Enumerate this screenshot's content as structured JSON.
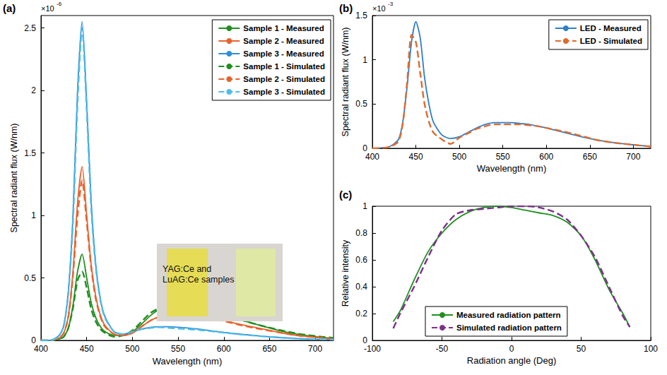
{
  "chart_data": [
    {
      "panel": "(a)",
      "type": "line",
      "xlabel": "Wavelength (nm)",
      "ylabel": "Spectral radiant flux (W/nm)",
      "y_multiplier": {
        "base": "×10",
        "exponent": -6
      },
      "annotations": [
        "YAG:Ce and LuAG:Ce samples"
      ],
      "x": [
        400,
        410,
        420,
        425,
        430,
        435,
        440,
        445,
        450,
        455,
        460,
        465,
        470,
        480,
        490,
        500,
        510,
        520,
        530,
        540,
        550,
        560,
        570,
        580,
        590,
        600,
        620,
        640,
        660,
        680,
        700,
        720
      ],
      "series": [
        {
          "name": "Sample 1 - Measured",
          "color": "#1f8f1f",
          "line_style": "solid",
          "values": [
            0,
            0,
            0.01,
            0.03,
            0.1,
            0.28,
            0.55,
            0.69,
            0.5,
            0.3,
            0.18,
            0.11,
            0.07,
            0.04,
            0.04,
            0.07,
            0.13,
            0.2,
            0.25,
            0.27,
            0.27,
            0.265,
            0.255,
            0.24,
            0.22,
            0.2,
            0.16,
            0.12,
            0.08,
            0.05,
            0.03,
            0.015
          ]
        },
        {
          "name": "Sample 2 - Measured",
          "color": "#e8622c",
          "line_style": "solid",
          "values": [
            0,
            0,
            0.02,
            0.06,
            0.2,
            0.55,
            1.1,
            1.39,
            1.0,
            0.6,
            0.35,
            0.2,
            0.12,
            0.05,
            0.04,
            0.06,
            0.11,
            0.16,
            0.19,
            0.21,
            0.21,
            0.205,
            0.2,
            0.19,
            0.175,
            0.16,
            0.125,
            0.095,
            0.065,
            0.04,
            0.025,
            0.012
          ]
        },
        {
          "name": "Sample 3 - Measured",
          "color": "#2f8fd8",
          "line_style": "solid",
          "values": [
            0,
            0,
            0.04,
            0.12,
            0.4,
            1.0,
            2.0,
            2.55,
            1.9,
            1.1,
            0.6,
            0.33,
            0.19,
            0.07,
            0.05,
            0.07,
            0.09,
            0.105,
            0.11,
            0.11,
            0.105,
            0.1,
            0.092,
            0.083,
            0.073,
            0.064,
            0.048,
            0.035,
            0.024,
            0.015,
            0.009,
            0.005
          ]
        },
        {
          "name": "Sample 1 - Simulated",
          "color": "#1f8f1f",
          "line_style": "dashed",
          "values": [
            0,
            0,
            0.01,
            0.03,
            0.1,
            0.26,
            0.48,
            0.55,
            0.42,
            0.25,
            0.15,
            0.09,
            0.06,
            0.03,
            0.04,
            0.08,
            0.15,
            0.22,
            0.26,
            0.27,
            0.27,
            0.27,
            0.26,
            0.245,
            0.225,
            0.2,
            0.16,
            0.12,
            0.085,
            0.055,
            0.035,
            0.02
          ]
        },
        {
          "name": "Sample 2 - Simulated",
          "color": "#e8622c",
          "line_style": "dashed",
          "values": [
            0,
            0,
            0.02,
            0.06,
            0.19,
            0.52,
            1.0,
            1.28,
            0.95,
            0.58,
            0.33,
            0.19,
            0.11,
            0.05,
            0.04,
            0.06,
            0.11,
            0.16,
            0.19,
            0.2,
            0.2,
            0.2,
            0.195,
            0.185,
            0.17,
            0.155,
            0.12,
            0.09,
            0.065,
            0.04,
            0.025,
            0.012
          ]
        },
        {
          "name": "Sample 3 - Simulated",
          "color": "#4cbde8",
          "line_style": "dashed",
          "values": [
            0,
            0,
            0.04,
            0.12,
            0.38,
            0.95,
            1.9,
            2.5,
            1.85,
            1.05,
            0.58,
            0.32,
            0.18,
            0.07,
            0.05,
            0.07,
            0.09,
            0.1,
            0.105,
            0.1,
            0.095,
            0.09,
            0.085,
            0.078,
            0.07,
            0.062,
            0.047,
            0.034,
            0.023,
            0.015,
            0.009,
            0.005
          ]
        }
      ],
      "xlim": [
        400,
        720
      ],
      "xticks": [
        400,
        450,
        500,
        550,
        600,
        650,
        700
      ],
      "ylim": [
        0,
        2.6
      ],
      "yticks": [
        0,
        0.5,
        1,
        1.5,
        2,
        2.5
      ],
      "grid": false,
      "legend": "upper right"
    },
    {
      "panel": "(b)",
      "type": "line",
      "xlabel": "Wavelength (nm)",
      "ylabel": "Spectral radiant flux (W/nm)",
      "y_multiplier": {
        "base": "×10",
        "exponent": -3
      },
      "x": [
        400,
        410,
        420,
        430,
        435,
        440,
        445,
        450,
        455,
        460,
        465,
        470,
        480,
        490,
        500,
        510,
        520,
        530,
        540,
        550,
        560,
        570,
        580,
        590,
        600,
        620,
        640,
        660,
        680,
        700,
        720
      ],
      "series": [
        {
          "name": "LED - Measured",
          "color": "#2e7ec9",
          "line_style": "solid",
          "values": [
            0,
            0.005,
            0.02,
            0.1,
            0.3,
            0.7,
            1.2,
            1.43,
            1.25,
            0.8,
            0.5,
            0.3,
            0.15,
            0.11,
            0.13,
            0.18,
            0.23,
            0.27,
            0.29,
            0.29,
            0.29,
            0.28,
            0.27,
            0.25,
            0.23,
            0.18,
            0.13,
            0.09,
            0.06,
            0.04,
            0.02
          ]
        },
        {
          "name": "LED - Simulated",
          "color": "#e06a2c",
          "line_style": "dashed",
          "values": [
            0,
            0.004,
            0.015,
            0.08,
            0.28,
            0.75,
            1.28,
            1.2,
            0.85,
            0.5,
            0.3,
            0.18,
            0.1,
            0.05,
            0.12,
            0.17,
            0.22,
            0.25,
            0.27,
            0.27,
            0.27,
            0.27,
            0.26,
            0.25,
            0.23,
            0.19,
            0.14,
            0.09,
            0.06,
            0.04,
            0.02
          ]
        }
      ],
      "xlim": [
        400,
        720
      ],
      "xticks": [
        400,
        450,
        500,
        550,
        600,
        650,
        700
      ],
      "ylim": [
        0,
        1.5
      ],
      "yticks": [
        0,
        0.5,
        1,
        1.5
      ],
      "grid": false,
      "legend": "upper right"
    },
    {
      "panel": "(c)",
      "type": "line",
      "xlabel": "Radiation angle (Deg)",
      "ylabel": "Relative intensity",
      "x": [
        -85,
        -80,
        -70,
        -60,
        -50,
        -40,
        -30,
        -20,
        -10,
        0,
        10,
        20,
        30,
        40,
        50,
        60,
        70,
        80,
        85
      ],
      "series": [
        {
          "name": "Measured radiation pattern",
          "color": "#1f8f1f",
          "line_style": "solid",
          "values": [
            0.14,
            0.22,
            0.45,
            0.66,
            0.8,
            0.9,
            0.96,
            0.99,
            1.0,
            0.99,
            0.97,
            0.95,
            0.93,
            0.88,
            0.78,
            0.6,
            0.38,
            0.2,
            0.1
          ]
        },
        {
          "name": "Simulated radiation pattern",
          "color": "#7e2f8e",
          "line_style": "dashed",
          "values": [
            0.09,
            0.2,
            0.4,
            0.62,
            0.82,
            0.94,
            0.97,
            0.98,
            0.99,
            1.0,
            1.0,
            0.99,
            0.96,
            0.9,
            0.78,
            0.62,
            0.4,
            0.18,
            0.1
          ]
        }
      ],
      "xlim": [
        -100,
        100
      ],
      "xticks": [
        -100,
        -50,
        0,
        50,
        100
      ],
      "ylim": [
        0,
        1
      ],
      "yticks": [
        0,
        0.2,
        0.4,
        0.6,
        0.8,
        1
      ],
      "grid": false,
      "legend": "lower center"
    }
  ]
}
